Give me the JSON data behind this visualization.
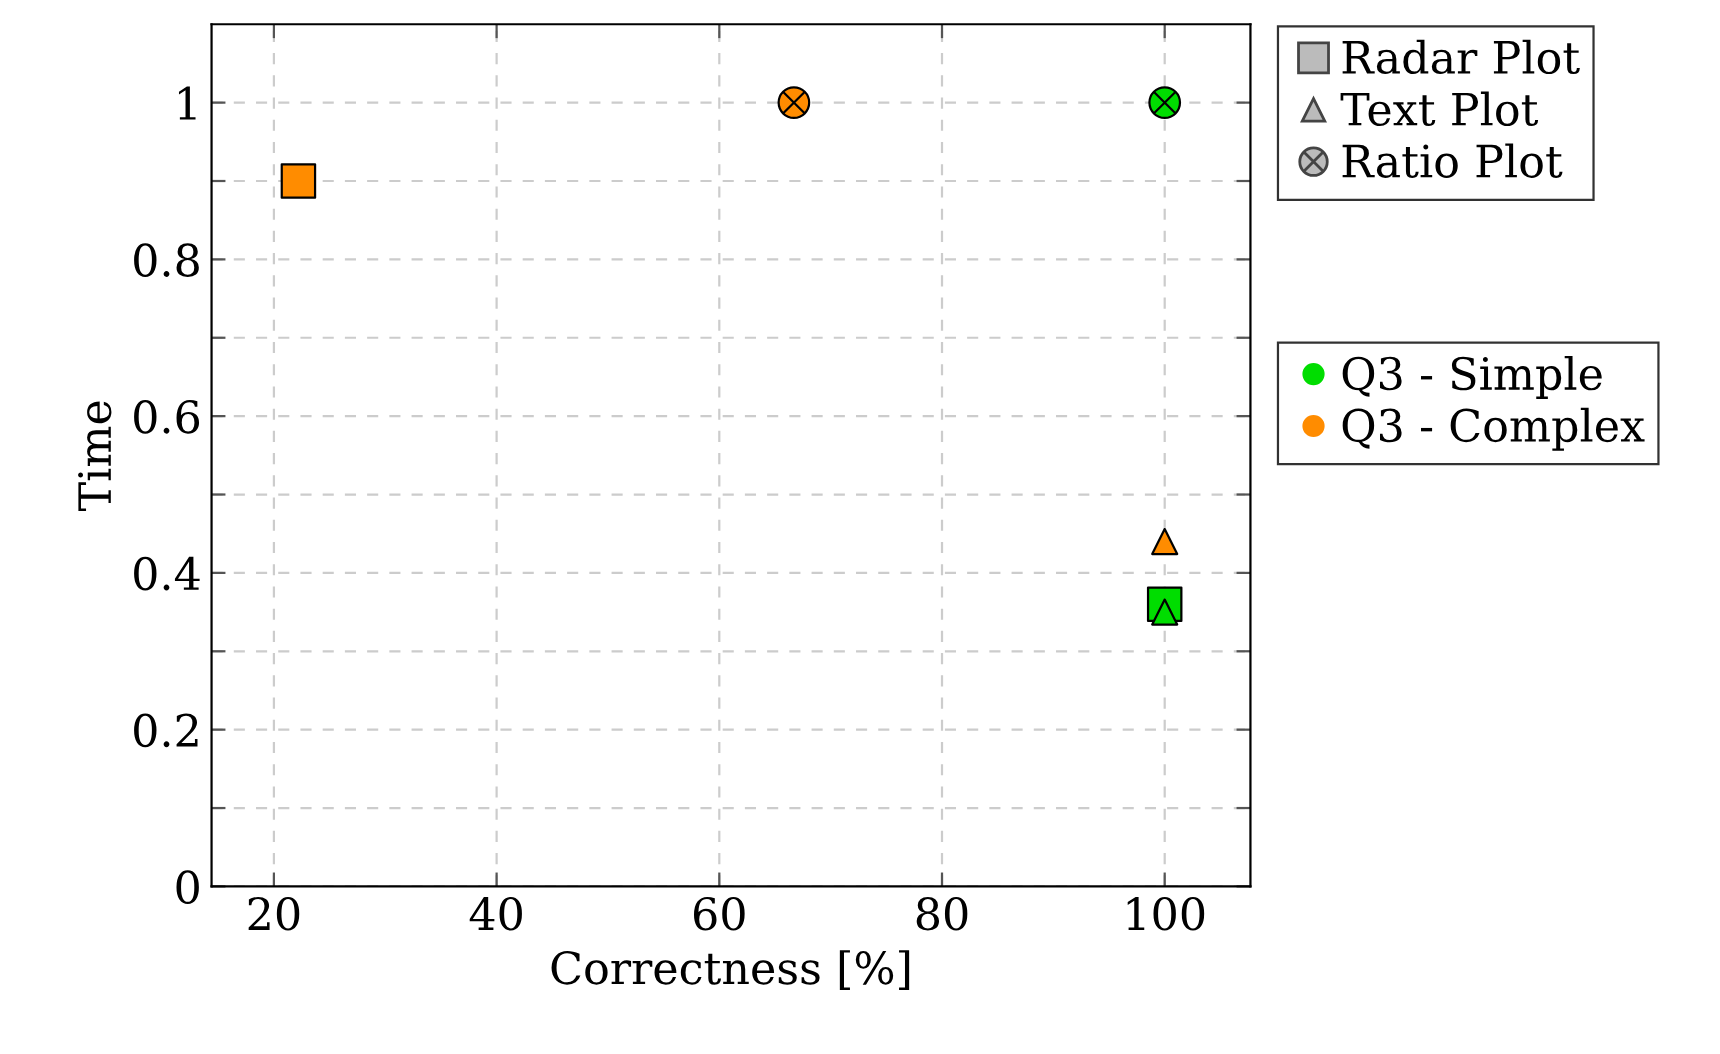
{
  "chart_data": {
    "type": "scatter",
    "xlabel": "Correctness [%]",
    "ylabel": "Time",
    "xlim": [
      14.4,
      107.7
    ],
    "ylim": [
      0,
      1.1
    ],
    "xticks": [
      20,
      40,
      60,
      80,
      100
    ],
    "yticks": [
      0,
      {
        "value": 0.1,
        "label": null
      },
      0.2,
      {
        "value": 0.3,
        "label": null
      },
      0.4,
      {
        "value": 0.5,
        "label": null
      },
      0.6,
      {
        "value": 0.7,
        "label": null
      },
      0.8,
      {
        "value": 0.9,
        "label": null
      },
      1
    ],
    "grid": true,
    "legend": "right",
    "annotations": [
      "Radar Plot",
      "Text Plot",
      "Ratio Plot"
    ],
    "series": [
      {
        "name": "Q3 - Simple",
        "marker": "square",
        "color": "#00dd00",
        "x": [
          100
        ],
        "values": [
          0.36
        ]
      },
      {
        "marker": "triangle",
        "color": "#00dd00",
        "x": [
          100
        ],
        "values": [
          0.35
        ]
      },
      {
        "marker": "cross",
        "color": "#00dd00",
        "x": [
          100
        ],
        "values": [
          1
        ]
      },
      {
        "name": "Q3 - Complex",
        "marker": "square",
        "color": "#ff8c00",
        "x": [
          22.2
        ],
        "values": [
          0.9
        ]
      },
      {
        "marker": "triangle",
        "color": "#ff8c00",
        "x": [
          100
        ],
        "values": [
          0.44
        ]
      },
      {
        "marker": "cross",
        "color": "#ff8c00",
        "x": [
          66.7
        ],
        "values": [
          1
        ]
      }
    ]
  }
}
